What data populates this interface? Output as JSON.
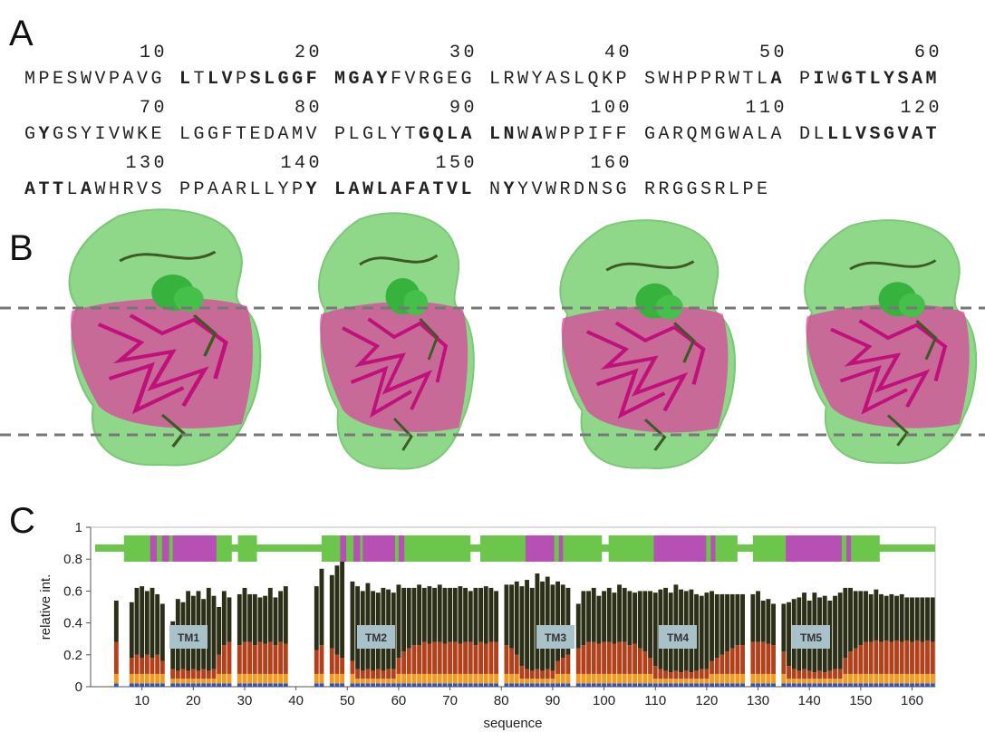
{
  "panel_labels": [
    "A",
    "B",
    "C"
  ],
  "sequence": {
    "numbers": [
      10,
      20,
      30,
      40,
      50,
      60,
      70,
      80,
      90,
      100,
      110,
      120,
      130,
      140,
      150,
      160
    ],
    "blocks": [
      [
        {
          "t": "MPESWVPAVG",
          "b": false
        }
      ],
      [
        {
          "t": "L",
          "b": true
        },
        {
          "t": "T",
          "b": false
        },
        {
          "t": "LV",
          "b": true
        },
        {
          "t": "P",
          "b": false
        },
        {
          "t": "SLGGF",
          "b": true
        }
      ],
      [
        {
          "t": "MGAY",
          "b": true
        },
        {
          "t": "FVRGEG",
          "b": false
        }
      ],
      [
        {
          "t": "LRWYASLQKP",
          "b": false
        }
      ],
      [
        {
          "t": "SWHPPRWTL",
          "b": false
        },
        {
          "t": "A",
          "b": true
        }
      ],
      [
        {
          "t": "P",
          "b": false
        },
        {
          "t": "I",
          "b": true
        },
        {
          "t": "W",
          "b": false
        },
        {
          "t": "GTLYSAM",
          "b": true
        }
      ],
      [
        {
          "t": "G",
          "b": false
        },
        {
          "t": "Y",
          "b": true
        },
        {
          "t": "GSYIVWKE",
          "b": false
        }
      ],
      [
        {
          "t": "LGGFTEDAMV",
          "b": false
        }
      ],
      [
        {
          "t": "PLGLYT",
          "b": false
        },
        {
          "t": "GQLA",
          "b": true
        }
      ],
      [
        {
          "t": "LN",
          "b": true
        },
        {
          "t": "W",
          "b": false
        },
        {
          "t": "A",
          "b": true
        },
        {
          "t": "WPPIFF",
          "b": false
        }
      ],
      [
        {
          "t": "GARQMGWALA",
          "b": false
        }
      ],
      [
        {
          "t": "DL",
          "b": false
        },
        {
          "t": "LLVSGVAT",
          "b": true
        }
      ],
      [
        {
          "t": "ATT",
          "b": true
        },
        {
          "t": "L",
          "b": false
        },
        {
          "t": "A",
          "b": true
        },
        {
          "t": "WHRVS",
          "b": false
        }
      ],
      [
        {
          "t": "PPAARLLYP",
          "b": false
        },
        {
          "t": "Y",
          "b": true
        }
      ],
      [
        {
          "t": "LAWLAFATVL",
          "b": true
        }
      ],
      [
        {
          "t": "N",
          "b": false
        },
        {
          "t": "Y",
          "b": true
        },
        {
          "t": "YVWRDNSG",
          "b": false
        }
      ],
      [
        {
          "t": "RRGGSRLPE",
          "b": false
        }
      ]
    ]
  },
  "chart_data": {
    "type": "bar",
    "stacked": true,
    "x_label": "sequence",
    "y_label": "relative int.",
    "xlim": [
      0,
      164.5
    ],
    "ylim": [
      0,
      1
    ],
    "xticks": [
      10,
      20,
      30,
      40,
      50,
      60,
      70,
      80,
      90,
      100,
      110,
      120,
      130,
      140,
      150,
      160
    ],
    "yticks": [
      0,
      0.2,
      0.4,
      0.6,
      0.8,
      1
    ],
    "annotations": [
      "TM1",
      "TM2",
      "TM3",
      "TM4",
      "TM5"
    ],
    "topology": {
      "line_color": "#6cc64c",
      "highlight_color": "#b650b4",
      "helices": [
        [
          6.5,
          27.5
        ],
        [
          28.7,
          32.4
        ],
        [
          45,
          74
        ],
        [
          75.9,
          99.6
        ],
        [
          100.9,
          126
        ],
        [
          129,
          153.7
        ]
      ],
      "highlights": [
        [
          11.6,
          12.9
        ],
        [
          13.9,
          15.3
        ],
        [
          16,
          24.5
        ],
        [
          48.6,
          49.8
        ],
        [
          51.2,
          52.5
        ],
        [
          53,
          59.3
        ],
        [
          60,
          61.1
        ],
        [
          84.7,
          90.3
        ],
        [
          91.2,
          92
        ],
        [
          109.7,
          119.9
        ],
        [
          120.8,
          121.7
        ],
        [
          135.4,
          146.3
        ],
        [
          147.2,
          148.1
        ]
      ]
    },
    "x": [
      1,
      2,
      3,
      4,
      5,
      6,
      7,
      8,
      9,
      10,
      11,
      12,
      13,
      14,
      15,
      16,
      17,
      18,
      19,
      20,
      21,
      22,
      23,
      24,
      25,
      26,
      27,
      28,
      29,
      30,
      31,
      32,
      33,
      34,
      35,
      36,
      37,
      38,
      39,
      40,
      41,
      42,
      43,
      44,
      45,
      46,
      47,
      48,
      49,
      50,
      51,
      52,
      53,
      54,
      55,
      56,
      57,
      58,
      59,
      60,
      61,
      62,
      63,
      64,
      65,
      66,
      67,
      68,
      69,
      70,
      71,
      72,
      73,
      74,
      75,
      76,
      77,
      78,
      79,
      80,
      81,
      82,
      83,
      84,
      85,
      86,
      87,
      88,
      89,
      90,
      91,
      92,
      93,
      94,
      95,
      96,
      97,
      98,
      99,
      100,
      101,
      102,
      103,
      104,
      105,
      106,
      107,
      108,
      109,
      110,
      111,
      112,
      113,
      114,
      115,
      116,
      117,
      118,
      119,
      120,
      121,
      122,
      123,
      124,
      125,
      126,
      127,
      128,
      129,
      130,
      131,
      132,
      133,
      134,
      135,
      136,
      137,
      138,
      139,
      140,
      141,
      142,
      143,
      144,
      145,
      146,
      147,
      148,
      149,
      150,
      151,
      152,
      153,
      154,
      155,
      156,
      157,
      158,
      159,
      160,
      161,
      162,
      163,
      164
    ],
    "series": [
      {
        "color": "#2f55b5",
        "values": [
          null,
          null,
          null,
          null,
          0.02,
          null,
          null,
          0.02,
          0.02,
          0.02,
          0.02,
          0.02,
          0.02,
          0.02,
          null,
          0.02,
          0.02,
          0.02,
          0.02,
          0.02,
          0.02,
          0.02,
          0.02,
          0.02,
          0.02,
          0.02,
          0.02,
          null,
          0.02,
          0.02,
          0.02,
          0.02,
          0.02,
          0.02,
          0.02,
          0.02,
          0.02,
          0.02,
          null,
          null,
          null,
          null,
          null,
          0.02,
          0.02,
          null,
          0.02,
          0.02,
          0.02,
          null,
          0.02,
          0.02,
          0.02,
          0.02,
          0.02,
          0.02,
          0.02,
          0.02,
          0.02,
          0.02,
          0.02,
          0.02,
          0.02,
          0.02,
          0.02,
          0.02,
          0.02,
          0.02,
          0.02,
          0.02,
          0.02,
          0.02,
          0.02,
          0.02,
          0.02,
          0.02,
          0.02,
          0.02,
          0.02,
          null,
          0.02,
          0.02,
          0.02,
          0.02,
          0.02,
          0.02,
          0.02,
          0.02,
          0.02,
          0.02,
          0.02,
          0.02,
          0.02,
          null,
          0.02,
          0.02,
          0.02,
          0.02,
          0.02,
          0.02,
          0.02,
          0.02,
          0.02,
          0.02,
          0.02,
          0.02,
          0.02,
          0.02,
          0.02,
          0.02,
          0.02,
          0.02,
          0.02,
          0.02,
          0.02,
          0.02,
          0.02,
          0.02,
          0.02,
          0.02,
          0.02,
          0.02,
          0.02,
          0.02,
          0.02,
          0.02,
          0.02,
          null,
          0.02,
          0.02,
          0.02,
          0.02,
          0.02,
          null,
          0.02,
          0.02,
          0.02,
          0.02,
          0.02,
          0.02,
          0.02,
          0.02,
          0.02,
          0.02,
          0.02,
          0.02,
          0.02,
          0.02,
          0.02,
          0.02,
          0.02,
          0.02,
          0.02,
          0.02,
          0.02,
          0.02,
          0.02,
          0.02,
          0.02,
          0.02,
          0.02,
          0.02,
          0.02,
          0.02
        ]
      },
      {
        "color": "#f59a1f",
        "values": [
          null,
          null,
          null,
          null,
          0.06,
          null,
          null,
          0.06,
          0.06,
          0.06,
          0.06,
          0.06,
          0.06,
          0.06,
          null,
          0.03,
          0.03,
          0.03,
          0.03,
          0.03,
          0.03,
          0.03,
          0.03,
          0.03,
          0.06,
          0.06,
          0.06,
          null,
          0.06,
          0.06,
          0.06,
          0.06,
          0.06,
          0.06,
          0.06,
          0.06,
          0.06,
          0.06,
          null,
          null,
          null,
          null,
          null,
          0.06,
          0.06,
          null,
          0.06,
          0.06,
          0.06,
          null,
          0.06,
          0.03,
          0.03,
          0.03,
          0.03,
          0.03,
          0.03,
          0.03,
          0.03,
          0.06,
          0.06,
          0.06,
          0.06,
          0.06,
          0.06,
          0.06,
          0.06,
          0.06,
          0.06,
          0.06,
          0.06,
          0.06,
          0.06,
          0.06,
          0.06,
          0.06,
          0.06,
          0.06,
          0.06,
          null,
          0.06,
          0.06,
          0.06,
          0.03,
          0.03,
          0.03,
          0.03,
          0.03,
          0.03,
          0.03,
          0.06,
          0.06,
          0.06,
          null,
          0.06,
          0.06,
          0.06,
          0.06,
          0.06,
          0.06,
          0.06,
          0.06,
          0.06,
          0.06,
          0.06,
          0.06,
          0.06,
          0.06,
          0.06,
          0.03,
          0.03,
          0.03,
          0.03,
          0.03,
          0.03,
          0.03,
          0.03,
          0.03,
          0.03,
          0.03,
          0.06,
          0.06,
          0.06,
          0.06,
          0.06,
          0.06,
          0.06,
          null,
          0.06,
          0.06,
          0.06,
          0.06,
          0.06,
          null,
          0.06,
          0.03,
          0.03,
          0.03,
          0.03,
          0.03,
          0.03,
          0.03,
          0.03,
          0.03,
          0.03,
          0.03,
          0.06,
          0.06,
          0.06,
          0.06,
          0.06,
          0.06,
          0.06,
          0.06,
          0.06,
          0.06,
          0.06,
          0.06,
          0.06,
          0.06,
          0.06,
          0.06,
          0.06,
          0.06
        ]
      },
      {
        "color": "#b2411b",
        "values": [
          null,
          null,
          null,
          null,
          0.2,
          null,
          null,
          0.1,
          0.12,
          0.1,
          0.12,
          0.1,
          0.12,
          0.08,
          null,
          0.06,
          0.05,
          0.06,
          0.05,
          0.06,
          0.05,
          0.06,
          0.05,
          0.06,
          0.12,
          0.18,
          0.2,
          null,
          0.18,
          0.2,
          0.2,
          0.18,
          0.2,
          0.19,
          0.2,
          0.18,
          0.2,
          0.19,
          null,
          null,
          null,
          null,
          null,
          0.15,
          0.18,
          null,
          0.16,
          0.12,
          0.1,
          null,
          0.08,
          0.06,
          0.05,
          0.06,
          0.05,
          0.06,
          0.05,
          0.06,
          0.06,
          0.1,
          0.14,
          0.16,
          0.18,
          0.18,
          0.2,
          0.19,
          0.2,
          0.2,
          0.19,
          0.2,
          0.2,
          0.19,
          0.2,
          0.2,
          0.18,
          0.2,
          0.19,
          0.2,
          0.2,
          null,
          0.18,
          0.16,
          0.12,
          0.08,
          0.06,
          0.05,
          0.06,
          0.05,
          0.06,
          0.05,
          0.08,
          0.1,
          0.12,
          null,
          0.16,
          0.18,
          0.2,
          0.2,
          0.19,
          0.2,
          0.2,
          0.19,
          0.2,
          0.2,
          0.18,
          0.19,
          0.16,
          0.14,
          0.1,
          0.08,
          0.06,
          0.05,
          0.04,
          0.05,
          0.04,
          0.05,
          0.04,
          0.05,
          0.06,
          0.06,
          0.08,
          0.1,
          0.12,
          0.14,
          0.16,
          0.18,
          0.18,
          null,
          0.2,
          0.2,
          0.2,
          0.19,
          0.18,
          null,
          0.14,
          0.08,
          0.06,
          0.05,
          0.06,
          0.05,
          0.04,
          0.05,
          0.04,
          0.05,
          0.06,
          0.06,
          0.1,
          0.14,
          0.16,
          0.18,
          0.2,
          0.2,
          0.21,
          0.2,
          0.21,
          0.2,
          0.21,
          0.2,
          0.21,
          0.2,
          0.21,
          0.2,
          0.21,
          0.2
        ]
      },
      {
        "color": "#2c2f18",
        "values": [
          null,
          null,
          null,
          null,
          0.26,
          null,
          null,
          0.35,
          0.42,
          0.45,
          0.4,
          0.44,
          0.38,
          0.36,
          null,
          0.3,
          0.45,
          0.42,
          0.5,
          0.46,
          0.5,
          0.44,
          0.52,
          0.46,
          0.3,
          0.34,
          0.28,
          null,
          0.32,
          0.34,
          0.3,
          0.32,
          0.28,
          0.3,
          0.34,
          0.3,
          0.32,
          0.36,
          null,
          null,
          null,
          null,
          null,
          0.4,
          0.48,
          null,
          0.46,
          0.56,
          0.65,
          null,
          0.5,
          0.52,
          0.5,
          0.54,
          0.5,
          0.48,
          0.52,
          0.5,
          0.48,
          0.46,
          0.4,
          0.38,
          0.36,
          0.38,
          0.34,
          0.36,
          0.34,
          0.36,
          0.35,
          0.34,
          0.34,
          0.36,
          0.34,
          0.32,
          0.36,
          0.34,
          0.36,
          0.34,
          0.32,
          null,
          0.38,
          0.4,
          0.46,
          0.5,
          0.56,
          0.52,
          0.6,
          0.56,
          0.58,
          0.54,
          0.5,
          0.46,
          0.42,
          null,
          0.28,
          0.34,
          0.32,
          0.34,
          0.3,
          0.32,
          0.34,
          0.32,
          0.36,
          0.34,
          0.34,
          0.32,
          0.36,
          0.38,
          0.42,
          0.46,
          0.5,
          0.52,
          0.5,
          0.54,
          0.52,
          0.5,
          0.52,
          0.48,
          0.46,
          0.48,
          0.44,
          0.4,
          0.38,
          0.36,
          0.34,
          0.32,
          0.32,
          null,
          0.3,
          0.32,
          0.26,
          0.28,
          0.26,
          null,
          0.3,
          0.4,
          0.44,
          0.46,
          0.48,
          0.44,
          0.5,
          0.46,
          0.48,
          0.44,
          0.46,
          0.48,
          0.44,
          0.4,
          0.36,
          0.34,
          0.32,
          0.3,
          0.32,
          0.3,
          0.28,
          0.3,
          0.28,
          0.3,
          0.27,
          0.28,
          0.27,
          0.28,
          0.27,
          0.28
        ]
      }
    ]
  }
}
